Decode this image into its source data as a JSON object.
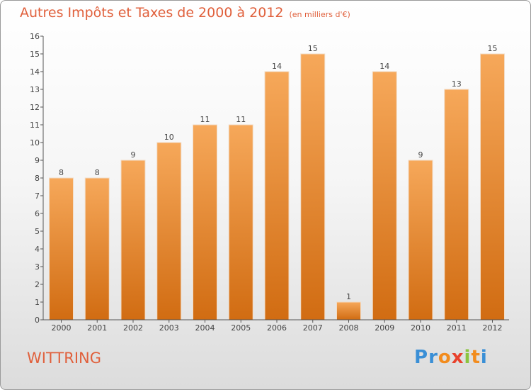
{
  "title": "Autres Impôts et Taxes de 2000 à 2012",
  "unit": "(en milliers d'€)",
  "commune": "WITTRING",
  "brand": {
    "letters": [
      "P",
      "r",
      "o",
      "x",
      "i",
      "t",
      "i"
    ],
    "colors": [
      "#3a8fd6",
      "#3a8fd6",
      "#f28c1e",
      "#e8412c",
      "#8bc43f",
      "#f28c1e",
      "#3a8fd6"
    ]
  },
  "colors": {
    "bar_top": "#f6a85a",
    "bar_bottom": "#d16c12",
    "title": "#e0603c"
  },
  "chart_data": {
    "type": "bar",
    "categories": [
      "2000",
      "2001",
      "2002",
      "2003",
      "2004",
      "2005",
      "2006",
      "2007",
      "2008",
      "2009",
      "2010",
      "2011",
      "2012"
    ],
    "values": [
      8,
      8,
      9,
      10,
      11,
      11,
      14,
      15,
      1,
      14,
      9,
      13,
      15
    ],
    "data_labels": [
      "8",
      "8",
      "9",
      "10",
      "11",
      "11",
      "14",
      "15",
      "1",
      "14",
      "9",
      "13",
      "15"
    ],
    "title": "Autres Impôts et Taxes de 2000 à 2012",
    "ylim": [
      0,
      16
    ],
    "yticks": [
      0,
      1,
      2,
      3,
      4,
      5,
      6,
      7,
      8,
      9,
      10,
      11,
      12,
      13,
      14,
      15,
      16
    ],
    "grid": false
  }
}
